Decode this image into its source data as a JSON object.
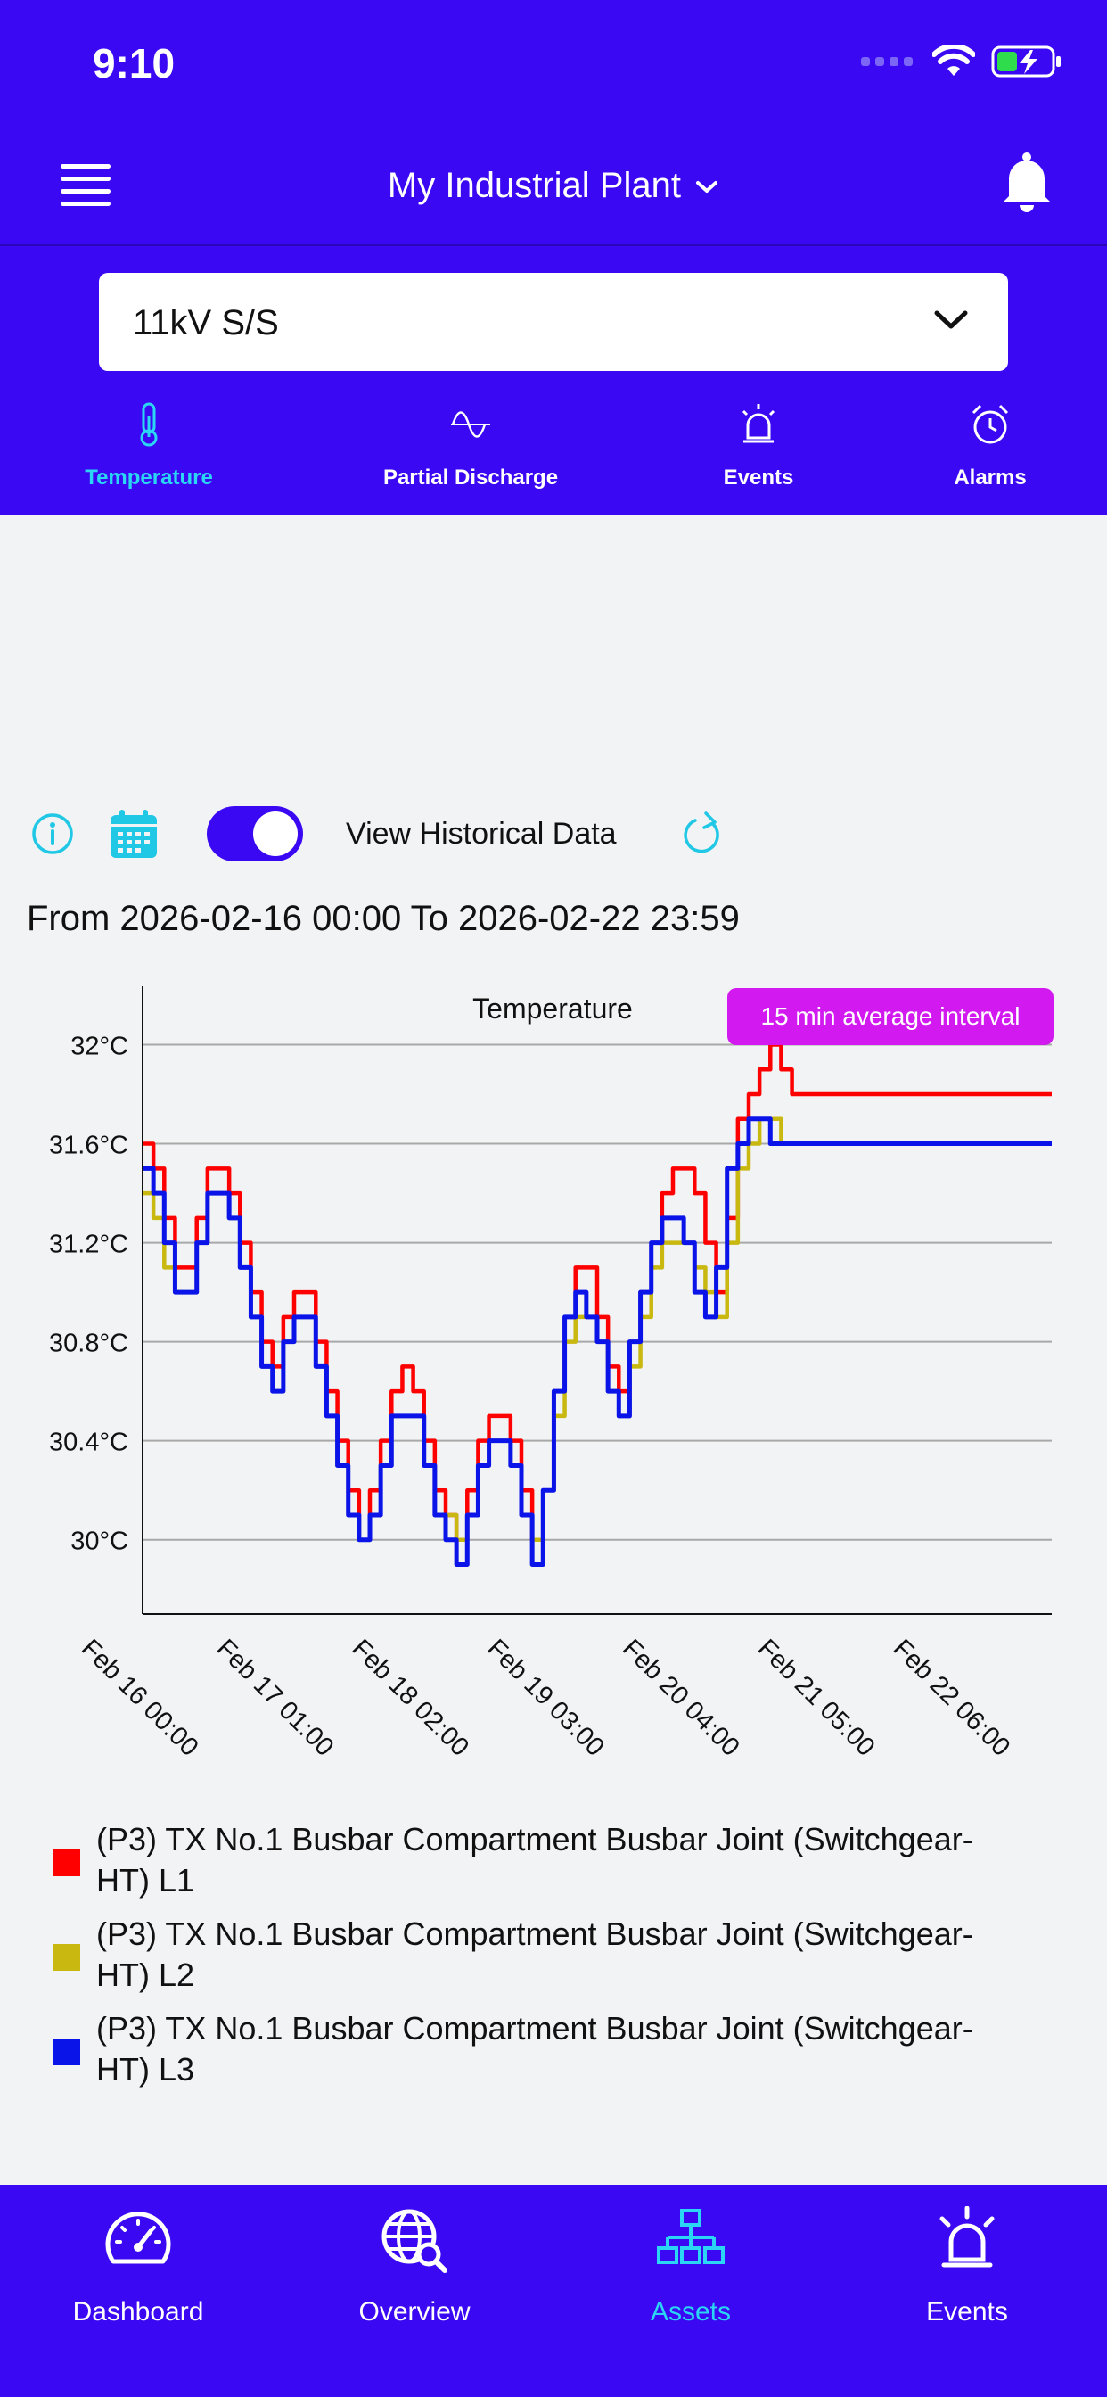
{
  "status_bar": {
    "time": "9:10"
  },
  "header": {
    "title": "My Industrial Plant"
  },
  "asset_selector": {
    "value": "11kV S/S"
  },
  "sub_tabs": [
    {
      "label": "Temperature",
      "icon": "thermometer-icon",
      "active": true
    },
    {
      "label": "Partial Discharge",
      "icon": "wave-icon",
      "active": false
    },
    {
      "label": "Events",
      "icon": "siren-icon",
      "active": false
    },
    {
      "label": "Alarms",
      "icon": "alarm-clock-icon",
      "active": false
    }
  ],
  "controls": {
    "toggle_label": "View Historical Data",
    "toggle_on": true
  },
  "range_text": "From 2026-02-16 00:00 To 2026-02-22 23:59",
  "chart_badge": "15 min average interval",
  "chart_data": {
    "type": "line",
    "title": "Temperature",
    "ylabel": "",
    "xlabel": "",
    "ylim": [
      29.7,
      32.2
    ],
    "yticks": [
      "32°C",
      "31.6°C",
      "31.2°C",
      "30.8°C",
      "30.4°C",
      "30°C"
    ],
    "ytick_values": [
      32.0,
      31.6,
      31.2,
      30.8,
      30.4,
      30.0
    ],
    "xticks": [
      "Feb 16 00:00",
      "Feb 17 01:00",
      "Feb 18 02:00",
      "Feb 19 03:00",
      "Feb 20 04:00",
      "Feb 21 05:00",
      "Feb 22 06:00"
    ],
    "xtick_hours": [
      0,
      25,
      50,
      75,
      100,
      125,
      150
    ],
    "xlim_hours": [
      0,
      168
    ],
    "grid": "horizontal",
    "series": [
      {
        "name": "(P3) TX No.1 Busbar Compartment Busbar Joint (Switchgear-HT) L1",
        "color": "#ff0000",
        "hours": [
          0,
          2,
          4,
          6,
          8,
          10,
          12,
          14,
          16,
          18,
          20,
          22,
          24,
          26,
          28,
          30,
          32,
          34,
          36,
          38,
          40,
          42,
          44,
          46,
          48,
          50,
          52,
          54,
          56,
          58,
          60,
          62,
          64,
          66,
          68,
          70,
          72,
          74,
          76,
          78,
          80,
          82,
          84,
          86,
          88,
          90,
          92,
          94,
          96,
          98,
          100,
          102,
          104,
          106,
          108,
          110,
          112,
          114,
          116,
          118,
          120,
          122,
          124,
          126,
          128,
          130,
          132,
          134,
          136,
          138,
          140,
          142,
          144,
          146,
          148,
          150,
          152,
          154,
          156,
          158,
          160,
          162,
          164,
          166,
          168
        ],
        "values": [
          31.6,
          31.5,
          31.3,
          31.1,
          31.1,
          31.3,
          31.5,
          31.5,
          31.4,
          31.2,
          31.0,
          30.8,
          30.7,
          30.9,
          31.0,
          31.0,
          30.8,
          30.6,
          30.4,
          30.2,
          30.0,
          30.2,
          30.4,
          30.6,
          30.7,
          30.6,
          30.4,
          30.2,
          30.1,
          30.0,
          30.2,
          30.4,
          30.5,
          30.5,
          30.4,
          30.2,
          30.0,
          30.2,
          30.6,
          30.9,
          31.1,
          31.1,
          30.9,
          30.7,
          30.6,
          30.8,
          31.0,
          31.2,
          31.4,
          31.5,
          31.5,
          31.4,
          31.2,
          31.0,
          31.3,
          31.7,
          31.8,
          31.9,
          32.0,
          31.9,
          31.8,
          31.8,
          31.8,
          31.8,
          31.8,
          31.8,
          31.8,
          31.8,
          31.8,
          31.8,
          31.8,
          31.8,
          31.8,
          31.8,
          31.8,
          31.8,
          31.8,
          31.8,
          31.8,
          31.8,
          31.8,
          31.8,
          31.8,
          31.8,
          31.8
        ]
      },
      {
        "name": "(P3) TX No.1 Busbar Compartment Busbar Joint (Switchgear-HT) L2",
        "color": "#c8b810",
        "hours": [
          0,
          2,
          4,
          6,
          8,
          10,
          12,
          14,
          16,
          18,
          20,
          22,
          24,
          26,
          28,
          30,
          32,
          34,
          36,
          38,
          40,
          42,
          44,
          46,
          48,
          50,
          52,
          54,
          56,
          58,
          60,
          62,
          64,
          66,
          68,
          70,
          72,
          74,
          76,
          78,
          80,
          82,
          84,
          86,
          88,
          90,
          92,
          94,
          96,
          98,
          100,
          102,
          104,
          106,
          108,
          110,
          112,
          114,
          116,
          118,
          120,
          122,
          124,
          126,
          128,
          130,
          132,
          134,
          136,
          138,
          140,
          142,
          144,
          146,
          148,
          150,
          152,
          154,
          156,
          158,
          160,
          162,
          164,
          166,
          168
        ],
        "values": [
          31.4,
          31.3,
          31.1,
          31.0,
          31.0,
          31.2,
          31.4,
          31.4,
          31.3,
          31.1,
          30.9,
          30.7,
          30.6,
          30.8,
          30.9,
          30.9,
          30.7,
          30.5,
          30.3,
          30.1,
          30.0,
          30.1,
          30.3,
          30.5,
          30.5,
          30.5,
          30.3,
          30.1,
          30.1,
          30.0,
          30.1,
          30.3,
          30.4,
          30.4,
          30.3,
          30.1,
          30.0,
          30.2,
          30.5,
          30.8,
          30.9,
          30.9,
          30.8,
          30.6,
          30.5,
          30.7,
          30.9,
          31.1,
          31.2,
          31.2,
          31.2,
          31.1,
          31.0,
          30.9,
          31.2,
          31.5,
          31.6,
          31.7,
          31.7,
          31.6,
          31.6,
          31.6,
          31.6,
          31.6,
          31.6,
          31.6,
          31.6,
          31.6,
          31.6,
          31.6,
          31.6,
          31.6,
          31.6,
          31.6,
          31.6,
          31.6,
          31.6,
          31.6,
          31.6,
          31.6,
          31.6,
          31.6,
          31.6,
          31.6,
          31.6
        ]
      },
      {
        "name": "(P3) TX No.1 Busbar Compartment Busbar Joint (Switchgear-HT) L3",
        "color": "#0a14e8",
        "hours": [
          0,
          2,
          4,
          6,
          8,
          10,
          12,
          14,
          16,
          18,
          20,
          22,
          24,
          26,
          28,
          30,
          32,
          34,
          36,
          38,
          40,
          42,
          44,
          46,
          48,
          50,
          52,
          54,
          56,
          58,
          60,
          62,
          64,
          66,
          68,
          70,
          72,
          74,
          76,
          78,
          80,
          82,
          84,
          86,
          88,
          90,
          92,
          94,
          96,
          98,
          100,
          102,
          104,
          106,
          108,
          110,
          112,
          114,
          116,
          118,
          120,
          122,
          124,
          126,
          128,
          130,
          132,
          134,
          136,
          138,
          140,
          142,
          144,
          146,
          148,
          150,
          152,
          154,
          156,
          158,
          160,
          162,
          164,
          166,
          168
        ],
        "values": [
          31.5,
          31.4,
          31.2,
          31.0,
          31.0,
          31.2,
          31.4,
          31.4,
          31.3,
          31.1,
          30.9,
          30.7,
          30.6,
          30.8,
          30.9,
          30.9,
          30.7,
          30.5,
          30.3,
          30.1,
          30.0,
          30.1,
          30.3,
          30.5,
          30.5,
          30.5,
          30.3,
          30.1,
          30.0,
          29.9,
          30.1,
          30.3,
          30.4,
          30.4,
          30.3,
          30.1,
          29.9,
          30.2,
          30.6,
          30.9,
          31.0,
          30.9,
          30.8,
          30.6,
          30.5,
          30.8,
          31.0,
          31.2,
          31.3,
          31.3,
          31.2,
          31.0,
          30.9,
          31.1,
          31.5,
          31.6,
          31.7,
          31.7,
          31.6,
          31.6,
          31.6,
          31.6,
          31.6,
          31.6,
          31.6,
          31.6,
          31.6,
          31.6,
          31.6,
          31.6,
          31.6,
          31.6,
          31.6,
          31.6,
          31.6,
          31.6,
          31.6,
          31.6,
          31.6,
          31.6,
          31.6,
          31.6,
          31.6,
          31.6,
          31.6
        ]
      }
    ]
  },
  "legend": [
    {
      "color": "#ff0000",
      "line1": "(P3) TX No.1 Busbar Compartment Busbar Joint (Switchgear-",
      "line2": "HT)  L1"
    },
    {
      "color": "#c8b810",
      "line1": "(P3) TX No.1 Busbar Compartment Busbar Joint (Switchgear-",
      "line2": "HT)  L2"
    },
    {
      "color": "#0a14e8",
      "line1": "(P3) TX No.1 Busbar Compartment Busbar Joint (Switchgear-",
      "line2": "HT)  L3"
    }
  ],
  "tab_bar": [
    {
      "label": "Dashboard",
      "icon": "gauge-icon",
      "active": false
    },
    {
      "label": "Overview",
      "icon": "globe-search-icon",
      "active": false
    },
    {
      "label": "Assets",
      "icon": "hierarchy-icon",
      "active": true
    },
    {
      "label": "Events",
      "icon": "siren-icon",
      "active": false
    }
  ],
  "colors": {
    "brand": "#3a08f2",
    "accent": "#2ad6f3",
    "badge": "#d21af0"
  }
}
